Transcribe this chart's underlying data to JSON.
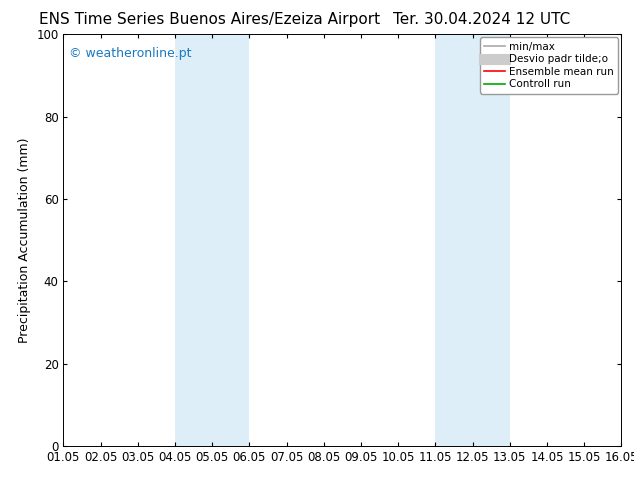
{
  "title_left": "ENS Time Series Buenos Aires/Ezeiza Airport",
  "title_right": "Ter. 30.04.2024 12 UTC",
  "ylabel": "Precipitation Accumulation (mm)",
  "ylim": [
    0,
    100
  ],
  "xlim": [
    0,
    15
  ],
  "xtick_labels": [
    "01.05",
    "02.05",
    "03.05",
    "04.05",
    "05.05",
    "06.05",
    "07.05",
    "08.05",
    "09.05",
    "10.05",
    "11.05",
    "12.05",
    "13.05",
    "14.05",
    "15.05",
    "16.05"
  ],
  "ytick_values": [
    0,
    20,
    40,
    60,
    80,
    100
  ],
  "shaded_bands": [
    {
      "xstart": 3,
      "xend": 5,
      "color": "#ddeef8"
    },
    {
      "xstart": 10,
      "xend": 12,
      "color": "#ddeef8"
    }
  ],
  "watermark": "© weatheronline.pt",
  "watermark_color": "#1a7abf",
  "legend_entries": [
    {
      "label": "min/max",
      "color": "#aaaaaa",
      "lw": 1.2,
      "type": "line"
    },
    {
      "label": "Desvio padr tilde;o",
      "color": "#cccccc",
      "lw": 8,
      "type": "line"
    },
    {
      "label": "Ensemble mean run",
      "color": "#ff0000",
      "lw": 1.2,
      "type": "line"
    },
    {
      "label": "Controll run",
      "color": "#00aa00",
      "lw": 1.2,
      "type": "line"
    }
  ],
  "bg_color": "#ffffff",
  "plot_bg_color": "#ffffff",
  "title_fontsize": 11,
  "axis_fontsize": 9,
  "tick_fontsize": 8.5,
  "watermark_fontsize": 9
}
